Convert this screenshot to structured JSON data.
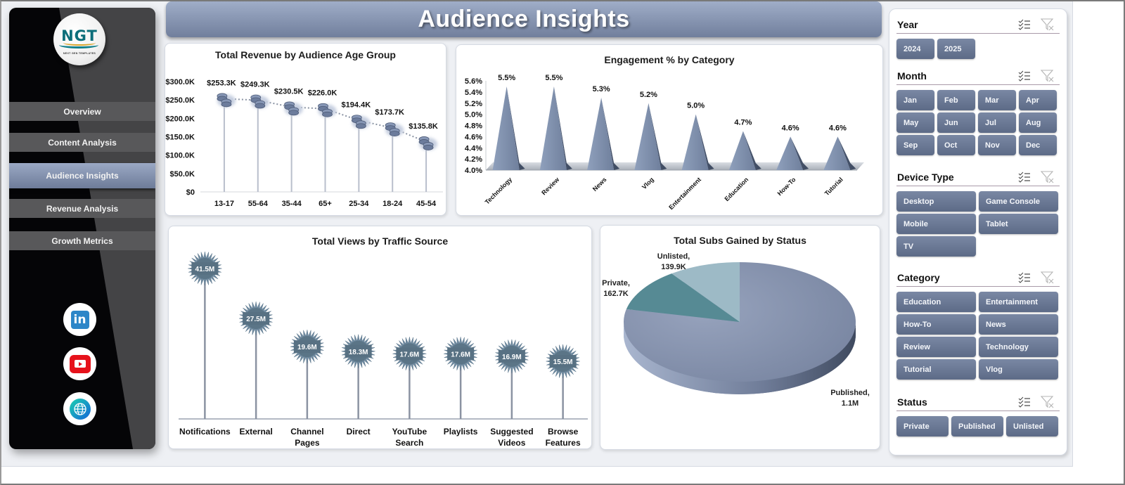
{
  "header": {
    "title": "Audience Insights"
  },
  "sidebar": {
    "logo": {
      "text": "NGT",
      "subtitle": "NEXT GEN TEMPLATES"
    },
    "nav": [
      {
        "label": "Overview",
        "active": false
      },
      {
        "label": "Content Analysis",
        "active": false
      },
      {
        "label": "Audience Insights",
        "active": true
      },
      {
        "label": "Revenue Analysis",
        "active": false
      },
      {
        "label": "Growth Metrics",
        "active": false
      }
    ],
    "social": [
      {
        "name": "linkedin",
        "icon": "linkedin-icon",
        "glyph": "in"
      },
      {
        "name": "youtube",
        "icon": "youtube-icon"
      },
      {
        "name": "website",
        "icon": "globe-icon"
      }
    ]
  },
  "colors": {
    "accent": "#6e7c99",
    "header_top": "#9fadc8",
    "header_bottom": "#717f9c",
    "button": "#6a7895",
    "sidebar_dark": "#050507",
    "sidebar_grey": "#444446",
    "starburst": "#5e7a8b",
    "pie_published": "#8390ab",
    "pie_private": "#568a94",
    "pie_unlisted": "#9dbac6"
  },
  "filters": {
    "year": {
      "title": "Year",
      "options": [
        "2024",
        "2025"
      ]
    },
    "month": {
      "title": "Month",
      "options": [
        "Jan",
        "Feb",
        "Mar",
        "Apr",
        "May",
        "Jun",
        "Jul",
        "Aug",
        "Sep",
        "Oct",
        "Nov",
        "Dec"
      ]
    },
    "device_type": {
      "title": "Device Type",
      "options": [
        "Desktop",
        "Game Console",
        "Mobile",
        "Tablet",
        "TV"
      ]
    },
    "category": {
      "title": "Category",
      "options": [
        "Education",
        "Entertainment",
        "How-To",
        "News",
        "Review",
        "Technology",
        "Tutorial",
        "Vlog"
      ]
    },
    "status": {
      "title": "Status",
      "options": [
        "Private",
        "Published",
        "Unlisted"
      ]
    }
  },
  "chart_data": [
    {
      "type": "line",
      "title": "Total Revenue  by Audience Age Group",
      "categories": [
        "13-17",
        "55-64",
        "35-44",
        "65+",
        "25-34",
        "18-24",
        "45-54"
      ],
      "values": [
        253.3,
        249.3,
        230.5,
        226.0,
        194.4,
        173.7,
        135.8
      ],
      "value_labels": [
        "$253.3K",
        "$249.3K",
        "$230.5K",
        "$226.0K",
        "$194.4K",
        "$173.7K",
        "$135.8K"
      ],
      "units": "$K",
      "yticks": [
        "$0",
        "$50.0K",
        "$100.0K",
        "$150.0K",
        "$200.0K",
        "$250.0K",
        "$300.0K"
      ],
      "ylim": [
        0,
        300
      ],
      "xlabel": "",
      "ylabel": "",
      "marker": "coin-stack",
      "drop_lines": true,
      "line_style": "dotted",
      "grid": false,
      "legend": "none"
    },
    {
      "type": "bar",
      "style": "3d-pyramid",
      "title": "Engagement  % by Category",
      "categories": [
        "Technology",
        "Review",
        "News",
        "Vlog",
        "Entertainment",
        "Education",
        "How-To",
        "Tutorial"
      ],
      "values": [
        5.5,
        5.5,
        5.3,
        5.2,
        5.0,
        4.7,
        4.6,
        4.6
      ],
      "value_labels": [
        "5.5%",
        "5.5%",
        "5.3%",
        "5.2%",
        "5.0%",
        "4.7%",
        "4.6%",
        "4.6%"
      ],
      "yticks": [
        "4.0%",
        "4.2%",
        "4.4%",
        "4.6%",
        "4.8%",
        "5.0%",
        "5.2%",
        "5.4%",
        "5.6%"
      ],
      "ylim": [
        4.0,
        5.6
      ],
      "xlabel": "",
      "ylabel": "",
      "grid": false,
      "legend": "none"
    },
    {
      "type": "bar",
      "style": "lollipop-starburst",
      "title": "Total Views by Traffic Source",
      "categories": [
        "Notifications",
        "External",
        "Channel Pages",
        "Direct",
        "YouTube Search",
        "Playlists",
        "Suggested Videos",
        "Browse Features"
      ],
      "category_lines": [
        [
          "Notifications"
        ],
        [
          "External"
        ],
        [
          "Channel",
          "Pages"
        ],
        [
          "Direct"
        ],
        [
          "YouTube",
          "Search"
        ],
        [
          "Playlists"
        ],
        [
          "Suggested",
          "Videos"
        ],
        [
          "Browse",
          "Features"
        ]
      ],
      "values": [
        41.5,
        27.5,
        19.6,
        18.3,
        17.6,
        17.6,
        16.9,
        15.5
      ],
      "value_labels": [
        "41.5M",
        "27.5M",
        "19.6M",
        "18.3M",
        "17.6M",
        "17.6M",
        "16.9M",
        "15.5M"
      ],
      "units": "M",
      "xlabel": "",
      "ylabel": "",
      "grid": false,
      "legend": "none"
    },
    {
      "type": "pie",
      "style": "3d",
      "title": "Total Subs Gained by Status",
      "categories": [
        "Published",
        "Private",
        "Unlisted"
      ],
      "values": [
        1100,
        162.7,
        139.9
      ],
      "units": "K",
      "value_labels": [
        "Published,|1.1M",
        "Private,|162.7K",
        "Unlisted,|139.9K"
      ],
      "legend": "none"
    }
  ]
}
